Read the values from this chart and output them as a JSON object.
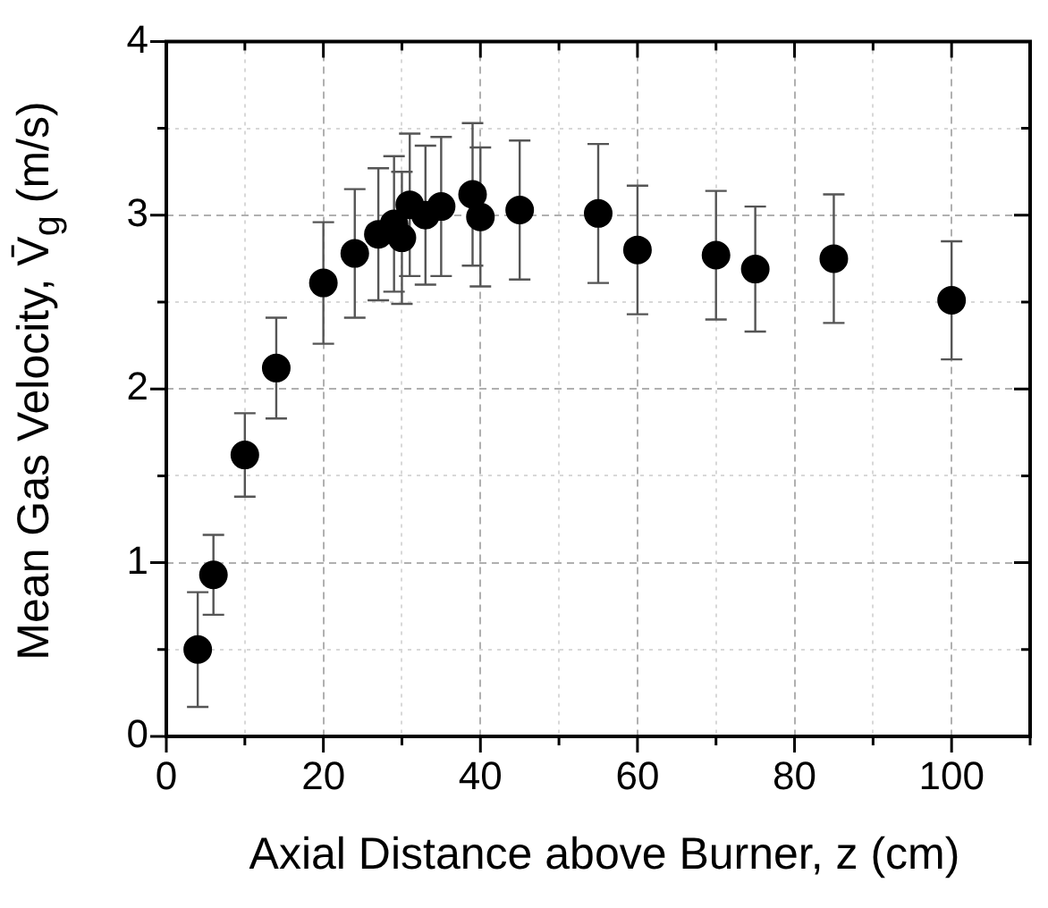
{
  "chart_data": {
    "type": "scatter",
    "xlabel": "Axial Distance above Burner, z (cm)",
    "ylabel": "Mean Gas Velocity, V̄$_{g}$ (m/s)",
    "x": [
      4,
      6,
      10,
      14,
      20,
      24,
      27,
      29,
      30,
      31,
      33,
      35,
      39,
      40,
      45,
      55,
      60,
      70,
      75,
      85,
      100
    ],
    "series": [
      {
        "color": "#000000",
        "values": [
          0.5,
          0.93,
          1.62,
          2.12,
          2.61,
          2.78,
          2.89,
          2.95,
          2.87,
          3.06,
          3.0,
          3.05,
          3.12,
          2.99,
          3.03,
          3.01,
          2.8,
          2.77,
          2.69,
          2.75,
          2.51
        ],
        "errors": [
          0.33,
          0.23,
          0.24,
          0.29,
          0.35,
          0.37,
          0.38,
          0.39,
          0.38,
          0.41,
          0.4,
          0.4,
          0.41,
          0.4,
          0.4,
          0.4,
          0.37,
          0.37,
          0.36,
          0.37,
          0.34
        ]
      }
    ],
    "xlim": [
      0,
      110
    ],
    "ylim": [
      0,
      4
    ],
    "xticks": [
      0,
      {
        "value": 10,
        "label": null
      },
      20,
      {
        "value": 30,
        "label": null
      },
      40,
      {
        "value": 50,
        "label": null
      },
      60,
      {
        "value": 70,
        "label": null
      },
      80,
      {
        "value": 90,
        "label": null
      },
      100,
      {
        "value": 110,
        "label": null
      }
    ],
    "yticks": [
      0,
      {
        "value": 0.5,
        "label": null
      },
      1,
      {
        "value": 1.5,
        "label": null
      },
      2,
      {
        "value": 2.5,
        "label": null
      },
      3,
      {
        "value": 3.5,
        "label": null
      },
      4
    ],
    "grid": true,
    "marker": "circle",
    "legend": false
  }
}
